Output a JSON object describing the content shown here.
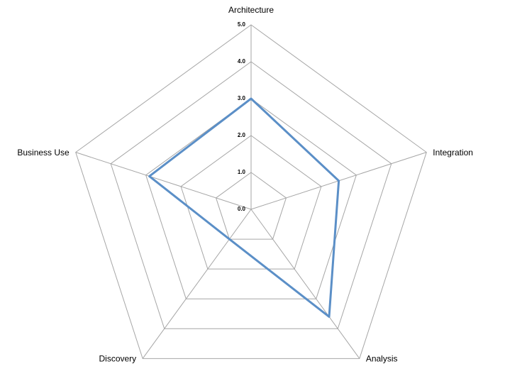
{
  "chart_data": {
    "type": "radar",
    "categories": [
      "Architecture",
      "Integration",
      "Analysis",
      "Discovery",
      "Business Use"
    ],
    "values": [
      3.0,
      2.5,
      3.6,
      1.0,
      2.9
    ],
    "color": "#5b8fc7",
    "rlim": [
      0,
      5
    ],
    "rticks": [
      {
        "value": 0,
        "label": "0.0"
      },
      {
        "value": 1,
        "label": "1.0"
      },
      {
        "value": 2,
        "label": "2.0"
      },
      {
        "value": 3,
        "label": "3.0"
      },
      {
        "value": 4,
        "label": "4.0"
      },
      {
        "value": 5,
        "label": "5.0"
      }
    ],
    "grid": true
  }
}
